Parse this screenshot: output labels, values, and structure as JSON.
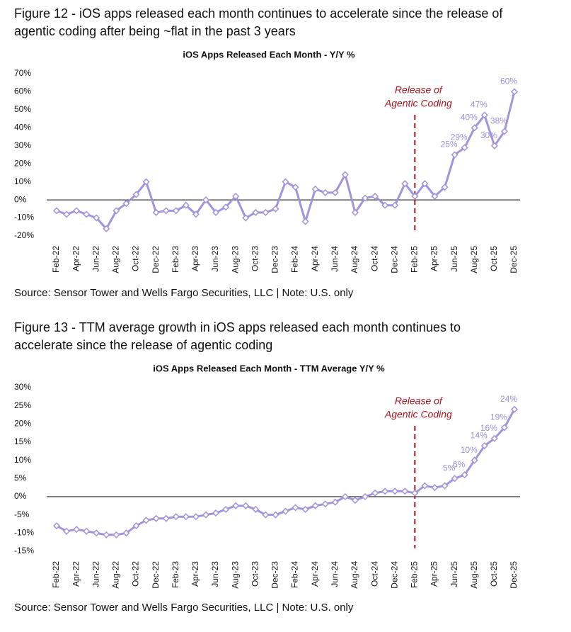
{
  "chart_data": [
    {
      "type": "line",
      "figure_title": [
        "Figure 12 - iOS apps released each month continues to accelerate since the release of",
        "agentic coding after being ~flat in the past 3 years"
      ],
      "title": "iOS Apps Released Each Month - Y/Y %",
      "source": "Source: Sensor Tower and Wells Fargo Securities, LLC | Note: U.S. only",
      "categories": [
        "Feb-22",
        null,
        "Apr-22",
        null,
        "Jun-22",
        null,
        "Aug-22",
        null,
        "Oct-22",
        null,
        "Dec-22",
        null,
        "Feb-23",
        null,
        "Apr-23",
        null,
        "Jun-23",
        null,
        "Aug-23",
        null,
        "Oct-23",
        null,
        "Dec-23",
        null,
        "Feb-24",
        null,
        "Apr-24",
        null,
        "Jun-24",
        null,
        "Aug-24",
        null,
        "Oct-24",
        null,
        "Dec-24",
        null,
        "Feb-25",
        null,
        "Apr-25",
        null,
        "Jun-25",
        null,
        "Aug-25",
        null,
        "Oct-25",
        null,
        "Dec-25"
      ],
      "series": [
        {
          "color": "#a194dd",
          "values": [
            -6,
            -8,
            -6,
            -8,
            -10,
            -16,
            -6,
            -2,
            3,
            10,
            -7,
            -6,
            -6,
            -3,
            -8,
            0,
            -7,
            -4,
            2,
            -10,
            -7,
            -7,
            -5,
            10,
            7,
            -12,
            6,
            4,
            4,
            14,
            -7,
            1,
            2,
            -3,
            -3,
            9,
            2,
            9,
            2,
            7,
            25,
            29,
            40,
            47,
            30,
            38,
            60
          ],
          "value_labels": [
            null,
            null,
            null,
            null,
            null,
            null,
            null,
            null,
            null,
            null,
            null,
            null,
            null,
            null,
            null,
            null,
            null,
            null,
            null,
            null,
            null,
            null,
            null,
            null,
            null,
            null,
            null,
            null,
            null,
            null,
            null,
            null,
            null,
            null,
            null,
            null,
            null,
            null,
            null,
            null,
            "25%",
            "29%",
            "40%",
            "47%",
            "30%",
            "38%",
            "60%"
          ]
        }
      ],
      "ylim": [
        -20,
        70
      ],
      "yticks": [
        {
          "value": -20,
          "label": "-20%"
        },
        {
          "value": -10,
          "label": "-10%"
        },
        {
          "value": 0,
          "label": "0%"
        },
        {
          "value": 10,
          "label": "10%"
        },
        {
          "value": 20,
          "label": "20%"
        },
        {
          "value": 30,
          "label": "30%"
        },
        {
          "value": 40,
          "label": "40%"
        },
        {
          "value": 50,
          "label": "50%"
        },
        {
          "value": 60,
          "label": "60%"
        },
        {
          "value": 70,
          "label": "70%"
        }
      ],
      "annotation": {
        "text": [
          "Release of",
          "Agentic Coding"
        ],
        "x": "Feb-25"
      }
    },
    {
      "type": "line",
      "figure_title": [
        "Figure 13 - TTM average growth in iOS apps released each month continues to",
        "accelerate since the release of agentic coding"
      ],
      "title": "iOS Apps Released Each Month - TTM Average Y/Y %",
      "source": "Source: Sensor Tower and Wells Fargo Securities, LLC | Note: U.S. only",
      "categories": [
        "Feb-22",
        null,
        "Apr-22",
        null,
        "Jun-22",
        null,
        "Aug-22",
        null,
        "Oct-22",
        null,
        "Dec-22",
        null,
        "Feb-23",
        null,
        "Apr-23",
        null,
        "Jun-23",
        null,
        "Aug-23",
        null,
        "Oct-23",
        null,
        "Dec-23",
        null,
        "Feb-24",
        null,
        "Apr-24",
        null,
        "Jun-24",
        null,
        "Aug-24",
        null,
        "Oct-24",
        null,
        "Dec-24",
        null,
        "Feb-25",
        null,
        "Apr-25",
        null,
        "Jun-25",
        null,
        "Aug-25",
        null,
        "Oct-25",
        null,
        "Dec-25"
      ],
      "series": [
        {
          "color": "#a194dd",
          "values": [
            -8,
            -9.5,
            -9,
            -9.5,
            -10,
            -10.5,
            -10.5,
            -10,
            -8,
            -6.5,
            -6,
            -6,
            -5.5,
            -5.5,
            -5.5,
            -5,
            -4.5,
            -3.5,
            -2.5,
            -2.5,
            -3.5,
            -5,
            -5,
            -4,
            -3,
            -3.5,
            -2.5,
            -2,
            -1.5,
            0,
            -1,
            0,
            1,
            1.5,
            1.5,
            1.5,
            1,
            3,
            2.5,
            3,
            5,
            6,
            10,
            14,
            16,
            19,
            24
          ],
          "value_labels": [
            null,
            null,
            null,
            null,
            null,
            null,
            null,
            null,
            null,
            null,
            null,
            null,
            null,
            null,
            null,
            null,
            null,
            null,
            null,
            null,
            null,
            null,
            null,
            null,
            null,
            null,
            null,
            null,
            null,
            null,
            null,
            null,
            null,
            null,
            null,
            null,
            null,
            null,
            null,
            null,
            "5%",
            "6%",
            "10%",
            "14%",
            "16%",
            "19%",
            "24%"
          ]
        }
      ],
      "ylim": [
        -15,
        30
      ],
      "yticks": [
        {
          "value": -15,
          "label": "-15%"
        },
        {
          "value": -10,
          "label": "-10%"
        },
        {
          "value": -5,
          "label": "-5%"
        },
        {
          "value": 0,
          "label": "0%"
        },
        {
          "value": 5,
          "label": "5%"
        },
        {
          "value": 10,
          "label": "10%"
        },
        {
          "value": 15,
          "label": "15%"
        },
        {
          "value": 20,
          "label": "20%"
        },
        {
          "value": 25,
          "label": "25%"
        },
        {
          "value": 30,
          "label": "30%"
        }
      ],
      "annotation": {
        "text": [
          "Release of",
          "Agentic Coding"
        ],
        "x": "Feb-25"
      }
    }
  ]
}
